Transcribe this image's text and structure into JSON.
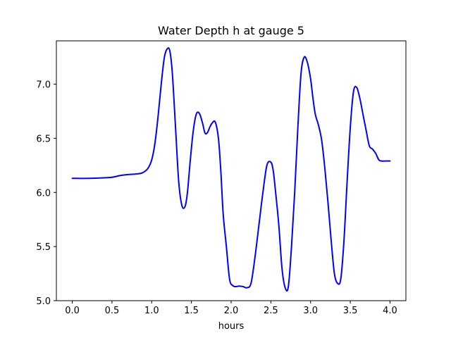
{
  "chart_data": {
    "type": "line",
    "title": "Water Depth h at gauge 5",
    "xlabel": "hours",
    "ylabel": "",
    "xlim": [
      -0.2,
      4.2
    ],
    "ylim": [
      5.0,
      7.4
    ],
    "xticks": [
      0.0,
      0.5,
      1.0,
      1.5,
      2.0,
      2.5,
      3.0,
      3.5,
      4.0
    ],
    "xtick_labels": [
      "0.0",
      "0.5",
      "1.0",
      "1.5",
      "2.0",
      "2.5",
      "3.0",
      "3.5",
      "4.0"
    ],
    "yticks": [
      5.0,
      5.5,
      6.0,
      6.5,
      7.0
    ],
    "ytick_labels": [
      "5.0",
      "5.5",
      "6.0",
      "6.5",
      "7.0"
    ],
    "grid": false,
    "series": [
      {
        "color": "#0000ff",
        "x": [
          0.0,
          0.2,
          0.4,
          0.5,
          0.6,
          0.7,
          0.8,
          0.88,
          0.95,
          1.0,
          1.04,
          1.08,
          1.12,
          1.16,
          1.2,
          1.23,
          1.26,
          1.3,
          1.34,
          1.38,
          1.42,
          1.45,
          1.48,
          1.52,
          1.56,
          1.6,
          1.64,
          1.67,
          1.7,
          1.73,
          1.76,
          1.8,
          1.84,
          1.87,
          1.9,
          1.94,
          1.98,
          2.02,
          2.06,
          2.1,
          2.15,
          2.2,
          2.25,
          2.3,
          2.35,
          2.4,
          2.45,
          2.5,
          2.53,
          2.56,
          2.6,
          2.64,
          2.68,
          2.72,
          2.76,
          2.8,
          2.84,
          2.88,
          2.92,
          2.96,
          3.0,
          3.03,
          3.06,
          3.1,
          3.14,
          3.18,
          3.22,
          3.26,
          3.3,
          3.34,
          3.38,
          3.42,
          3.46,
          3.5,
          3.54,
          3.58,
          3.62,
          3.66,
          3.7,
          3.74,
          3.78,
          3.82,
          3.86,
          3.9,
          3.94,
          3.97,
          4.0
        ],
        "y": [
          6.13,
          6.13,
          6.135,
          6.14,
          6.155,
          6.165,
          6.17,
          6.18,
          6.22,
          6.3,
          6.45,
          6.7,
          7.0,
          7.25,
          7.33,
          7.3,
          7.1,
          6.6,
          6.1,
          5.88,
          5.87,
          6.0,
          6.25,
          6.55,
          6.72,
          6.73,
          6.64,
          6.55,
          6.55,
          6.6,
          6.64,
          6.65,
          6.5,
          6.2,
          5.8,
          5.5,
          5.2,
          5.14,
          5.13,
          5.135,
          5.13,
          5.12,
          5.16,
          5.4,
          5.7,
          6.0,
          6.25,
          6.28,
          6.2,
          6.0,
          5.7,
          5.3,
          5.12,
          5.13,
          5.5,
          6.0,
          6.6,
          7.1,
          7.25,
          7.2,
          7.05,
          6.87,
          6.72,
          6.62,
          6.48,
          6.22,
          5.9,
          5.55,
          5.25,
          5.16,
          5.2,
          5.55,
          6.1,
          6.6,
          6.93,
          6.97,
          6.87,
          6.72,
          6.57,
          6.43,
          6.4,
          6.36,
          6.3,
          6.29,
          6.29,
          6.29,
          6.29
        ]
      }
    ]
  }
}
